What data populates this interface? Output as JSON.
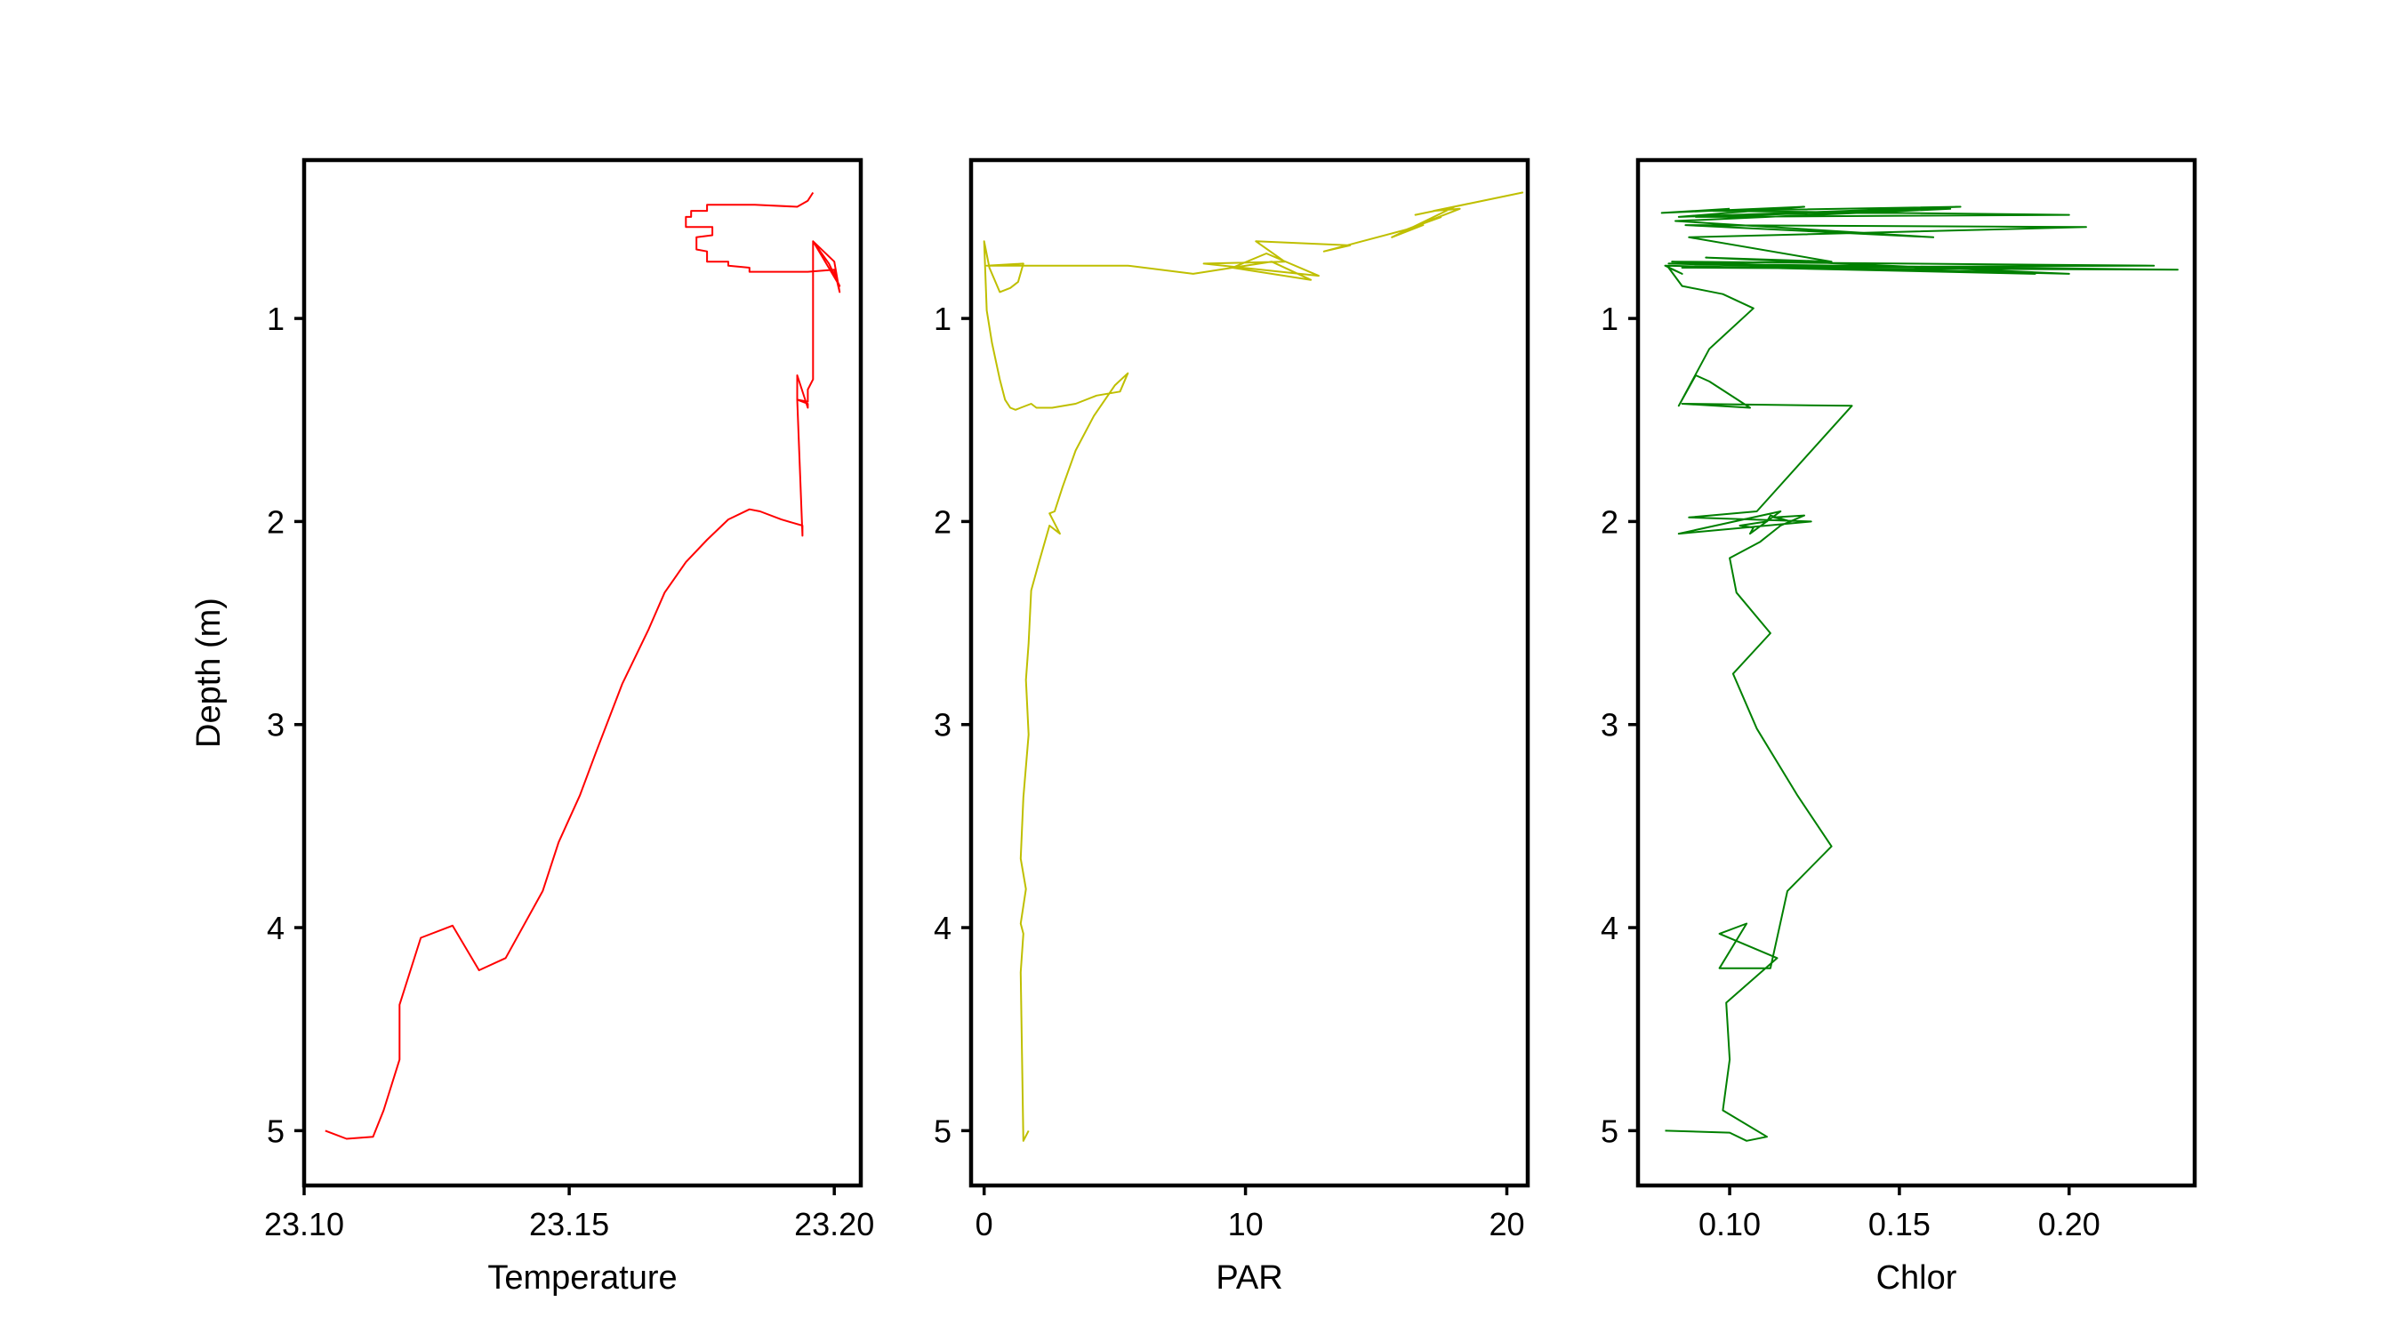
{
  "chart_data": [
    {
      "type": "line",
      "xlabel": "Temperature",
      "ylabel": "Depth (m)",
      "xlim": [
        23.1,
        23.205
      ],
      "ylim": [
        5.27,
        0.22
      ],
      "xticks": [
        "23.10",
        "23.15",
        "23.20"
      ],
      "yticks": [
        "1",
        "2",
        "3",
        "4",
        "5"
      ],
      "color": "#ff0000",
      "series": [
        {
          "x": [
            23.104,
            23.108,
            23.113,
            23.115,
            23.118,
            23.118,
            23.122,
            23.128,
            23.133,
            23.138,
            23.145,
            23.148,
            23.152,
            23.155,
            23.16,
            23.165,
            23.168,
            23.172,
            23.176,
            23.18,
            23.184,
            23.186,
            23.19,
            23.194,
            23.194,
            23.193,
            23.193,
            23.195,
            23.195,
            23.193,
            23.195,
            23.195,
            23.196,
            23.196,
            23.201,
            23.199,
            23.196,
            23.2,
            23.201,
            23.2,
            23.195,
            23.19,
            23.184,
            23.184,
            23.18,
            23.18,
            23.176,
            23.176,
            23.174,
            23.174,
            23.177,
            23.177,
            23.172,
            23.172,
            23.173,
            23.173,
            23.176,
            23.176,
            23.185,
            23.193,
            23.195,
            23.196
          ],
          "y": [
            5.0,
            5.04,
            5.03,
            4.9,
            4.65,
            4.38,
            4.05,
            3.99,
            4.21,
            4.15,
            3.82,
            3.58,
            3.35,
            3.14,
            2.8,
            2.53,
            2.35,
            2.2,
            2.09,
            1.99,
            1.94,
            1.95,
            1.99,
            2.02,
            2.07,
            1.4,
            1.28,
            1.44,
            1.42,
            1.4,
            1.41,
            1.35,
            1.3,
            0.62,
            0.84,
            0.73,
            0.62,
            0.72,
            0.87,
            0.76,
            0.77,
            0.77,
            0.77,
            0.75,
            0.74,
            0.72,
            0.72,
            0.67,
            0.66,
            0.6,
            0.59,
            0.55,
            0.55,
            0.5,
            0.5,
            0.47,
            0.47,
            0.44,
            0.44,
            0.45,
            0.42,
            0.38
          ]
        }
      ]
    },
    {
      "type": "line",
      "xlabel": "PAR",
      "ylabel": "",
      "xlim": [
        -0.5,
        20.8
      ],
      "ylim": [
        5.27,
        0.22
      ],
      "xticks": [
        "0",
        "10",
        "20"
      ],
      "yticks": [
        "1",
        "2",
        "3",
        "4",
        "5"
      ],
      "color": "#bfbf00",
      "series": [
        {
          "x": [
            1.7,
            1.5,
            1.4,
            1.5,
            1.4,
            1.6,
            1.4,
            1.5,
            1.7,
            1.6,
            1.7,
            1.8,
            2.1,
            2.5,
            2.9,
            2.5,
            2.7,
            3.0,
            3.5,
            4.2,
            5.0,
            5.5,
            5.2,
            4.3,
            3.5,
            2.6,
            2.0,
            1.8,
            1.4,
            1.2,
            1.0,
            0.8,
            0.6,
            0.3,
            0.1,
            0.0,
            0.2,
            0.6,
            1.0,
            1.3,
            1.5,
            0.1,
            2.0,
            5.5,
            8.0,
            11.0,
            12.5,
            9.5,
            10.8,
            12.8,
            8.4,
            11.5,
            10.4,
            14.0,
            13.0,
            16.8,
            15.6,
            18.0,
            16.5,
            20.6,
            17.2,
            18.2,
            16.0,
            17.5
          ],
          "y": [
            5.0,
            5.05,
            4.22,
            4.03,
            3.98,
            3.81,
            3.66,
            3.36,
            3.05,
            2.78,
            2.6,
            2.34,
            2.2,
            2.02,
            2.06,
            1.96,
            1.95,
            1.83,
            1.65,
            1.48,
            1.33,
            1.27,
            1.36,
            1.38,
            1.42,
            1.44,
            1.44,
            1.42,
            1.44,
            1.45,
            1.44,
            1.4,
            1.3,
            1.12,
            0.96,
            0.62,
            0.75,
            0.87,
            0.85,
            0.82,
            0.73,
            0.74,
            0.74,
            0.74,
            0.78,
            0.72,
            0.81,
            0.75,
            0.68,
            0.79,
            0.73,
            0.72,
            0.62,
            0.64,
            0.67,
            0.54,
            0.6,
            0.45,
            0.49,
            0.38,
            0.47,
            0.46,
            0.57,
            0.5
          ]
        }
      ]
    },
    {
      "type": "line",
      "xlabel": "Chlor",
      "ylabel": "",
      "xlim": [
        0.073,
        0.237
      ],
      "ylim": [
        5.27,
        0.22
      ],
      "xticks": [
        "0.10",
        "0.15",
        "0.20"
      ],
      "yticks": [
        "1",
        "2",
        "3",
        "4",
        "5"
      ],
      "color": "#008000",
      "series": [
        {
          "x": [
            0.081,
            0.1,
            0.105,
            0.111,
            0.098,
            0.1,
            0.099,
            0.114,
            0.097,
            0.105,
            0.097,
            0.112,
            0.117,
            0.13,
            0.12,
            0.108,
            0.101,
            0.112,
            0.102,
            0.1,
            0.109,
            0.115,
            0.122,
            0.113,
            0.118,
            0.112,
            0.111,
            0.103,
            0.107,
            0.106,
            0.115,
            0.085,
            0.124,
            0.088,
            0.108,
            0.136,
            0.086,
            0.106,
            0.094,
            0.09,
            0.085,
            0.094,
            0.107,
            0.098,
            0.086,
            0.082,
            0.086,
            0.081,
            0.19,
            0.083,
            0.225,
            0.086,
            0.232,
            0.082,
            0.2,
            0.093,
            0.13,
            0.088,
            0.205,
            0.087,
            0.16,
            0.084,
            0.165,
            0.09,
            0.2,
            0.095,
            0.168,
            0.085,
            0.122,
            0.08,
            0.1
          ],
          "y": [
            5.0,
            5.01,
            5.05,
            5.03,
            4.9,
            4.65,
            4.37,
            4.15,
            4.03,
            3.98,
            4.2,
            4.2,
            3.82,
            3.6,
            3.35,
            3.02,
            2.75,
            2.55,
            2.35,
            2.18,
            2.1,
            2.02,
            1.97,
            1.98,
            2.0,
            1.97,
            2.0,
            2.02,
            2.03,
            2.06,
            1.95,
            2.06,
            2.0,
            1.98,
            1.95,
            1.43,
            1.42,
            1.44,
            1.31,
            1.28,
            1.43,
            1.15,
            0.95,
            0.88,
            0.84,
            0.75,
            0.78,
            0.74,
            0.78,
            0.72,
            0.74,
            0.75,
            0.76,
            0.73,
            0.78,
            0.7,
            0.72,
            0.6,
            0.55,
            0.54,
            0.6,
            0.52,
            0.46,
            0.5,
            0.49,
            0.47,
            0.45,
            0.5,
            0.45,
            0.48,
            0.46
          ]
        }
      ]
    }
  ]
}
